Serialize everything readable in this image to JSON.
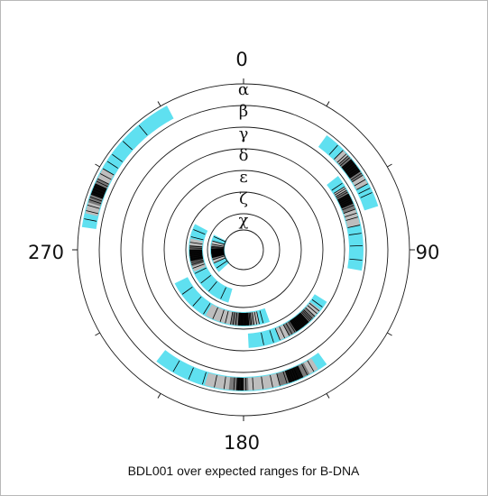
{
  "chart_data": {
    "type": "polar",
    "title": "BDL001 over expected ranges for B-DNA",
    "angle_tick_labels": [
      "0",
      "90",
      "180",
      "270"
    ],
    "angle_ticks_deg": [
      0,
      30,
      60,
      90,
      120,
      150,
      180,
      210,
      240,
      270,
      300,
      330
    ],
    "ring_labels": [
      "α",
      "β",
      "γ",
      "δ",
      "ε",
      "ζ",
      "χ"
    ],
    "colors": {
      "expected_range": "#5fe0f0",
      "density_light": "#bdbdbd",
      "density_mid": "#7a7a7a",
      "density_dark": "#0a0a0a",
      "observed_line": "#000000"
    },
    "series": [
      {
        "name": "α",
        "expected_ranges": [
          [
            278,
            332
          ]
        ],
        "density_bands": [
          [
            283,
            300,
            1
          ],
          [
            287,
            296,
            2
          ],
          [
            290,
            294,
            3
          ]
        ],
        "observed": [
          281,
          284,
          286,
          288,
          289,
          290,
          291,
          292,
          293,
          294,
          295,
          296,
          298,
          300,
          303,
          306,
          312,
          320
        ]
      },
      {
        "name": "β",
        "expected_ranges": [
          [
            36,
            72
          ],
          [
            144,
            218
          ]
        ],
        "density_bands": [
          [
            45,
            62,
            1
          ],
          [
            48,
            58,
            2
          ],
          [
            50,
            56,
            3
          ],
          [
            148,
            196,
            1
          ],
          [
            152,
            165,
            2
          ],
          [
            155,
            161,
            3
          ],
          [
            178,
            186,
            2
          ],
          [
            180,
            183,
            3
          ]
        ],
        "observed": [
          42,
          45,
          47,
          48,
          49,
          50,
          51,
          52,
          53,
          54,
          55,
          56,
          57,
          58,
          60,
          62,
          64,
          66,
          150,
          153,
          155,
          157,
          158,
          159,
          160,
          161,
          162,
          165,
          168,
          172,
          176,
          179,
          181,
          182,
          184,
          188,
          192,
          197,
          203,
          210
        ]
      },
      {
        "name": "γ",
        "expected_ranges": [
          [
            52,
            100
          ]
        ],
        "density_bands": [
          [
            58,
            78,
            1
          ],
          [
            60,
            70,
            2
          ],
          [
            62,
            67,
            3
          ]
        ],
        "observed": [
          56,
          58,
          59,
          60,
          61,
          62,
          63,
          64,
          65,
          66,
          67,
          68,
          70,
          72,
          74,
          78,
          82,
          88,
          95
        ]
      },
      {
        "name": "δ",
        "expected_ranges": [
          [
            122,
            177
          ]
        ],
        "density_bands": [
          [
            128,
            158,
            1
          ],
          [
            133,
            152,
            2
          ],
          [
            138,
            147,
            3
          ]
        ],
        "observed": [
          126,
          129,
          131,
          133,
          135,
          136,
          137,
          138,
          139,
          140,
          141,
          142,
          143,
          144,
          145,
          146,
          147,
          148,
          150,
          152,
          155,
          158,
          162,
          168
        ]
      },
      {
        "name": "ε",
        "expected_ranges": [
          [
            160,
            244
          ]
        ],
        "density_bands": [
          [
            168,
            210,
            1
          ],
          [
            172,
            190,
            2
          ],
          [
            176,
            184,
            3
          ]
        ],
        "observed": [
          165,
          168,
          170,
          172,
          174,
          175,
          176,
          177,
          178,
          179,
          180,
          181,
          182,
          183,
          184,
          186,
          188,
          190,
          194,
          198,
          204,
          212,
          222,
          234
        ]
      },
      {
        "name": "ζ",
        "expected_ranges": [
          [
            196,
            298
          ]
        ],
        "density_bands": [
          [
            246,
            282,
            1
          ],
          [
            252,
            275,
            2
          ],
          [
            258,
            270,
            3
          ]
        ],
        "observed": [
          205,
          220,
          232,
          244,
          250,
          254,
          256,
          258,
          260,
          262,
          264,
          266,
          268,
          270,
          272,
          274,
          278,
          284,
          292
        ]
      },
      {
        "name": "χ",
        "expected_ranges": [
          [
            228,
            297
          ]
        ],
        "density_bands": [
          [
            245,
            285,
            1
          ],
          [
            252,
            278,
            2
          ],
          [
            256,
            272,
            3
          ]
        ],
        "observed": [
          236,
          246,
          252,
          256,
          258,
          260,
          262,
          264,
          266,
          268,
          270,
          272,
          274,
          276,
          280,
          286,
          294
        ]
      }
    ]
  }
}
